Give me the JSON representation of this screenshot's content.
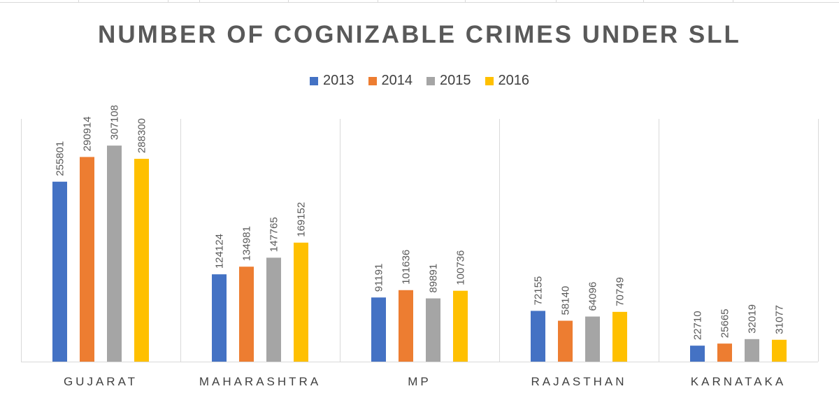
{
  "chart_data": {
    "type": "bar",
    "title": "NUMBER OF COGNIZABLE CRIMES UNDER SLL",
    "xlabel": "",
    "ylabel": "",
    "categories": [
      "GUJARAT",
      "MAHARASHTRA",
      "MP",
      "RAJASTHAN",
      "KARNATAKA"
    ],
    "series": [
      {
        "name": "2013",
        "color": "#4472c4",
        "values": [
          255801,
          124124,
          91191,
          72155,
          22710
        ]
      },
      {
        "name": "2014",
        "color": "#ed7d31",
        "values": [
          290914,
          134981,
          101636,
          58140,
          25665
        ]
      },
      {
        "name": "2015",
        "color": "#a5a5a5",
        "values": [
          307108,
          147765,
          89891,
          64096,
          32019
        ]
      },
      {
        "name": "2016",
        "color": "#ffc000",
        "values": [
          288300,
          169152,
          100736,
          70749,
          31077
        ]
      }
    ],
    "ylim": [
      0,
      350000
    ],
    "grid": false,
    "legend_position": "top"
  }
}
